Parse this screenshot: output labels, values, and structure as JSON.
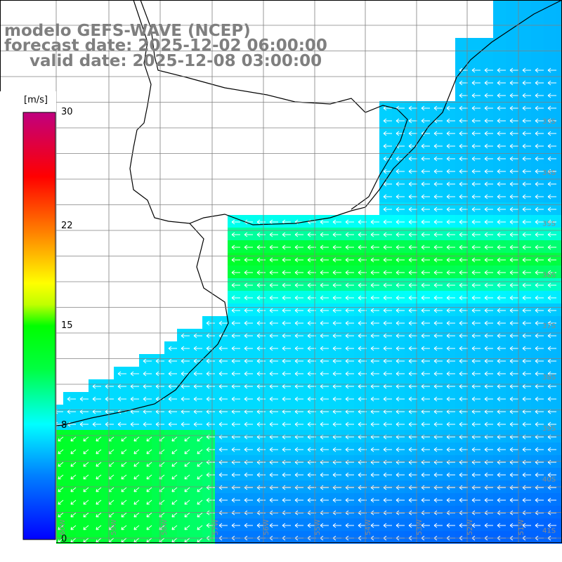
{
  "title": {
    "line1": "modelo GEFS-WAVE (NCEP)",
    "line2": "forecast date: 2025-12-02 06:00:00",
    "line3": "valid date: 2025-12-08 03:00:00"
  },
  "colorbar": {
    "unit": "[m/s]",
    "min": 0,
    "max": 30,
    "ticks": [
      {
        "value": 30,
        "label": "30"
      },
      {
        "value": 22,
        "label": "22"
      },
      {
        "value": 15,
        "label": "15"
      },
      {
        "value": 8,
        "label": "8"
      },
      {
        "value": 0,
        "label": "0"
      }
    ],
    "colors": [
      "#0000ff",
      "#00a0ff",
      "#00ffff",
      "#00ff00",
      "#ffff00",
      "#ff8000",
      "#ff0000",
      "#c0007f"
    ]
  },
  "lat_labels": [
    "33S",
    "34S",
    "35S",
    "36S",
    "37S",
    "38S",
    "39S",
    "40S",
    "41S"
  ],
  "lon_labels": [
    "60W",
    "59W",
    "58W",
    "57W",
    "56W",
    "55W",
    "54W",
    "53W",
    "52W",
    "51W"
  ],
  "wind": {
    "description_field": "wind speed",
    "arrow_direction": "onshore from east",
    "nearshore_speed_ms": 13,
    "offshore_speed_ms": 7
  },
  "colors": {
    "land": "#ffffff",
    "coast": "#000000",
    "grid": "#808080",
    "arrow": "#ffffff",
    "title": "#7f7f7f"
  }
}
